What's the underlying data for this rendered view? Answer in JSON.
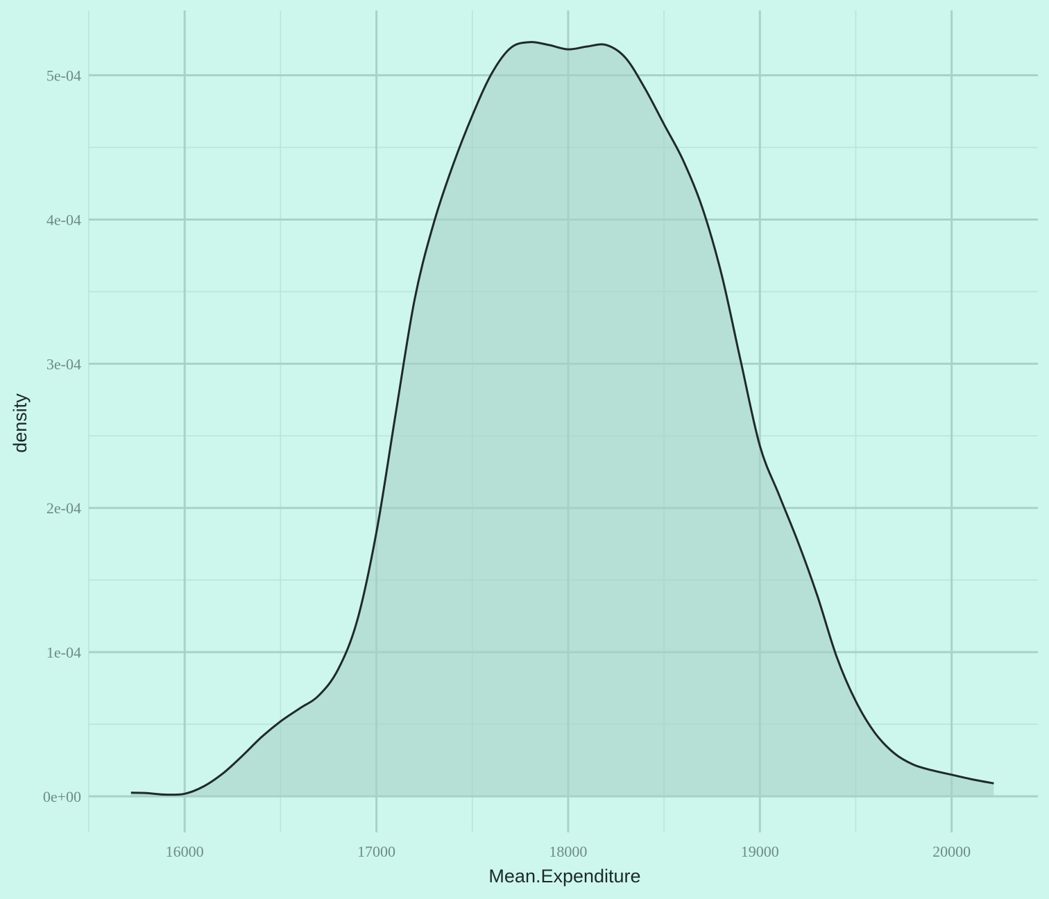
{
  "chart_data": {
    "type": "area",
    "title": "",
    "xlabel": "Mean.Expenditure",
    "ylabel": "density",
    "xlim": [
      15500,
      20450
    ],
    "ylim": [
      -2.5e-05,
      0.000545
    ],
    "x_ticks": [
      16000,
      17000,
      18000,
      19000,
      20000
    ],
    "x_tick_labels": [
      "16000",
      "17000",
      "18000",
      "19000",
      "20000"
    ],
    "x_minor_ticks": [
      15500,
      16500,
      17500,
      18500,
      19500
    ],
    "y_ticks": [
      0,
      0.0001,
      0.0002,
      0.0003,
      0.0004,
      0.0005
    ],
    "y_tick_labels": [
      "0e+00",
      "1e-04",
      "2e-04",
      "3e-04",
      "4e-04",
      "5e-04"
    ],
    "y_minor_ticks": [
      5e-05,
      0.00015,
      0.00025,
      0.00035,
      0.00045
    ],
    "grid": true,
    "fill_color": "#a7d0c7",
    "line_color": "#1f2a28",
    "background": "#cdf7ec",
    "series": [
      {
        "x": [
          15720,
          15800,
          15900,
          16000,
          16100,
          16200,
          16300,
          16400,
          16500,
          16600,
          16700,
          16800,
          16900,
          17000,
          17100,
          17200,
          17300,
          17400,
          17500,
          17600,
          17700,
          17800,
          17900,
          18000,
          18100,
          18200,
          18300,
          18400,
          18500,
          18600,
          18700,
          18800,
          18900,
          19000,
          19100,
          19200,
          19300,
          19400,
          19500,
          19600,
          19700,
          19800,
          19900,
          20000,
          20100,
          20220
        ],
        "y": [
          2.5e-06,
          2.3e-06,
          1.2e-06,
          1.8e-06,
          7e-06,
          1.6e-05,
          2.8e-05,
          4.1e-05,
          5.2e-05,
          6.1e-05,
          7e-05,
          8.8e-05,
          0.000122,
          0.000183,
          0.000265,
          0.000345,
          0.000398,
          0.000438,
          0.000472,
          0.000501,
          0.000519,
          0.000523,
          0.000521,
          0.000518,
          0.00052,
          0.000521,
          0.000512,
          0.000491,
          0.000466,
          0.000441,
          0.000408,
          0.000362,
          0.000302,
          0.000243,
          0.000209,
          0.000176,
          0.000139,
          9.7e-05,
          6.6e-05,
          4.4e-05,
          3e-05,
          2.2e-05,
          1.8e-05,
          1.5e-05,
          1.2e-05,
          9e-06
        ]
      }
    ]
  }
}
